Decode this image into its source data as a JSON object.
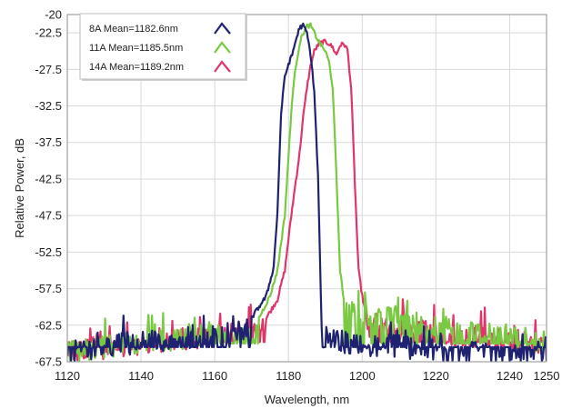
{
  "chart_data": {
    "type": "line",
    "xlabel": "Wavelength, nm",
    "ylabel": "Relative Power, dB",
    "xlim": [
      1120,
      1250
    ],
    "ylim": [
      -67.5,
      -20
    ],
    "x_ticks": [
      1120,
      1140,
      1160,
      1180,
      1200,
      1220,
      1240,
      1250
    ],
    "y_ticks": [
      -20,
      -22.5,
      -27.5,
      -32.5,
      -37.5,
      -42.5,
      -47.5,
      -52.5,
      -57.5,
      -62.5,
      -67.5
    ],
    "grid": true,
    "legend_position": "top-left",
    "series": [
      {
        "name": "8A Mean=1182.6nm",
        "color": "#1f2270",
        "noise_floor": -65.5,
        "x": [
          1120,
          1170,
          1174,
          1176,
          1177,
          1178,
          1179,
          1180,
          1181,
          1182,
          1183,
          1184,
          1185,
          1186,
          1187,
          1188,
          1188.5,
          1189,
          1250
        ],
        "y": [
          -64.5,
          -61.5,
          -58.5,
          -54.5,
          -47.0,
          -33.5,
          -28.5,
          -26.8,
          -25.5,
          -23.5,
          -21.8,
          -21.5,
          -22.5,
          -25.5,
          -30.5,
          -42.0,
          -52.5,
          -63.0,
          -65.5
        ]
      },
      {
        "name": "11A Mean=1185.5nm",
        "color": "#7ac943",
        "noise_floor": -65.0,
        "x": [
          1120,
          1172,
          1175,
          1177,
          1179,
          1180,
          1181,
          1182,
          1183,
          1184,
          1185,
          1186,
          1187,
          1188,
          1189,
          1190,
          1191,
          1192,
          1193,
          1194,
          1195,
          1250
        ],
        "y": [
          -64.5,
          -61.5,
          -58.5,
          -55.0,
          -47.5,
          -39.5,
          -31.5,
          -27.0,
          -24.0,
          -22.5,
          -21.6,
          -21.5,
          -22.5,
          -23.5,
          -24.3,
          -25.0,
          -26.5,
          -30.0,
          -42.0,
          -55.0,
          -59.0,
          -63.5
        ]
      },
      {
        "name": "14A Mean=1189.2nm",
        "color": "#e0356a",
        "noise_floor": -64.8,
        "x": [
          1120,
          1174,
          1177,
          1179,
          1181,
          1183,
          1184,
          1185,
          1186,
          1187,
          1188,
          1189,
          1190,
          1191,
          1192,
          1193,
          1194,
          1195,
          1196,
          1197,
          1198,
          1199,
          1200,
          1201,
          1250
        ],
        "y": [
          -64.5,
          -61.5,
          -59.0,
          -55.0,
          -46.5,
          -39.0,
          -34.0,
          -30.0,
          -27.0,
          -25.0,
          -24.2,
          -23.8,
          -23.7,
          -24.0,
          -24.5,
          -25.5,
          -24.2,
          -24.0,
          -24.8,
          -30.0,
          -43.0,
          -55.0,
          -58.5,
          -61.0,
          -63.5
        ]
      }
    ]
  }
}
